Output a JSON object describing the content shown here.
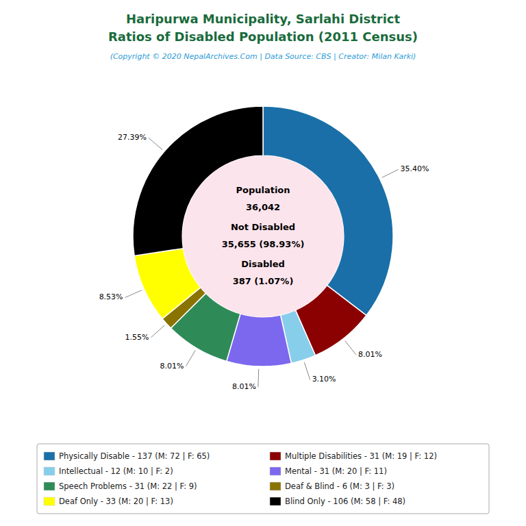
{
  "chart_data": {
    "type": "donut",
    "title": [
      "Haripurwa Municipality, Sarlahi District",
      "Ratios of Disabled Population (2011 Census)"
    ],
    "subtitle": "(Copyright © 2020 NepalArchives.Com | Data Source: CBS | Creator: Milan Karki)",
    "categories": [
      "Physically Disable - 137 (M: 72 | F: 65)",
      "Multiple Disabilities - 31 (M: 19 | F: 12)",
      "Intellectual - 12 (M: 10 | F: 2)",
      "Mental - 31 (M: 20 | F: 11)",
      "Speech Problems - 31 (M: 22 | F: 9)",
      "Deaf & Blind - 6 (M: 3 | F: 3)",
      "Deaf Only - 33 (M: 20 | F: 13)",
      "Blind Only - 106 (M: 58 | F: 48)"
    ],
    "values": [
      35.4,
      8.01,
      3.1,
      8.01,
      8.01,
      1.55,
      8.53,
      27.39
    ],
    "value_labels": [
      "35.40%",
      "8.01%",
      "3.10%",
      "8.01%",
      "8.01%",
      "1.55%",
      "8.53%",
      "27.39%"
    ],
    "colors": [
      "#1a6fa8",
      "#8b0000",
      "#87ceeb",
      "#7b68ee",
      "#2e8b57",
      "#8b7300",
      "#ffff00",
      "#000000"
    ],
    "annotations": [
      "Population",
      "36,042",
      "Not Disabled",
      "35,655 (98.93%)",
      "Disabled",
      "387 (1.07%)"
    ],
    "data_labels": true,
    "legend": "bottom"
  }
}
